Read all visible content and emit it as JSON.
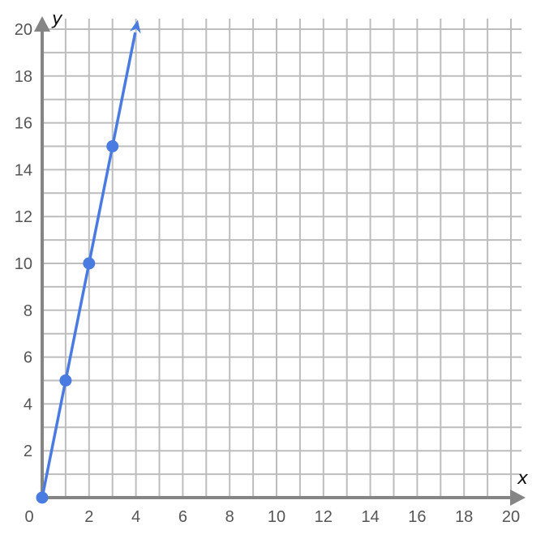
{
  "chart_data": {
    "type": "line",
    "title": "",
    "xlabel": "x",
    "ylabel": "y",
    "xlim": [
      0,
      20
    ],
    "ylim": [
      0,
      20
    ],
    "grid": true,
    "grid_step": 1,
    "x_ticks": [
      0,
      2,
      4,
      6,
      8,
      10,
      12,
      14,
      16,
      18,
      20
    ],
    "y_ticks": [
      2,
      4,
      6,
      8,
      10,
      12,
      14,
      16,
      18,
      20
    ],
    "x_tick_labels": [
      "0",
      "2",
      "4",
      "6",
      "8",
      "10",
      "12",
      "14",
      "16",
      "18",
      "20"
    ],
    "y_tick_labels": [
      "2",
      "4",
      "6",
      "8",
      "10",
      "12",
      "14",
      "16",
      "18",
      "20"
    ],
    "series": [
      {
        "points": [
          [
            0,
            0
          ],
          [
            1,
            5
          ],
          [
            2,
            10
          ],
          [
            3,
            15
          ]
        ],
        "line_end": [
          4.08,
          20.4
        ],
        "color": "#4a7be0"
      }
    ],
    "colors": {
      "axis": "#858585",
      "grid": "#bdbdbd",
      "series": "#4a7be0"
    }
  }
}
